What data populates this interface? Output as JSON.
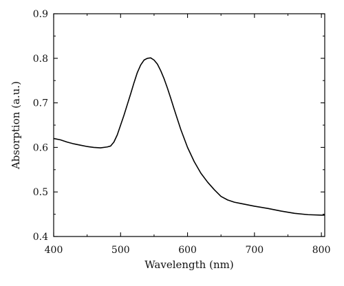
{
  "chart_data": {
    "type": "line",
    "title": "",
    "xlabel": "Wavelength (nm)",
    "ylabel": "Absorption (a.u.)",
    "xlim": [
      400,
      805
    ],
    "ylim": [
      0.4,
      0.9
    ],
    "xticks": [
      400,
      500,
      600,
      700,
      800
    ],
    "yticks": [
      0.4,
      0.5,
      0.6,
      0.7,
      0.8,
      0.9
    ],
    "xtick_labels": [
      "400",
      "500",
      "600",
      "700",
      "800"
    ],
    "ytick_labels": [
      "0.4",
      "0.5",
      "0.6",
      "0.7",
      "0.8",
      "0.9"
    ],
    "grid": false,
    "legend": "none",
    "line_color": "#000000",
    "series": [
      {
        "x": [
          400,
          410,
          420,
          430,
          440,
          450,
          460,
          470,
          480,
          485,
          490,
          495,
          500,
          505,
          510,
          515,
          520,
          525,
          530,
          535,
          540,
          545,
          550,
          555,
          560,
          565,
          570,
          575,
          580,
          590,
          600,
          610,
          620,
          630,
          640,
          650,
          660,
          670,
          680,
          700,
          720,
          740,
          760,
          780,
          800,
          805
        ],
        "y": [
          0.62,
          0.617,
          0.612,
          0.608,
          0.605,
          0.602,
          0.6,
          0.599,
          0.601,
          0.603,
          0.612,
          0.628,
          0.65,
          0.672,
          0.696,
          0.72,
          0.745,
          0.768,
          0.785,
          0.796,
          0.8,
          0.801,
          0.796,
          0.787,
          0.772,
          0.754,
          0.733,
          0.71,
          0.686,
          0.64,
          0.6,
          0.568,
          0.542,
          0.522,
          0.505,
          0.49,
          0.482,
          0.477,
          0.474,
          0.468,
          0.463,
          0.457,
          0.452,
          0.449,
          0.448,
          0.448
        ]
      }
    ]
  }
}
